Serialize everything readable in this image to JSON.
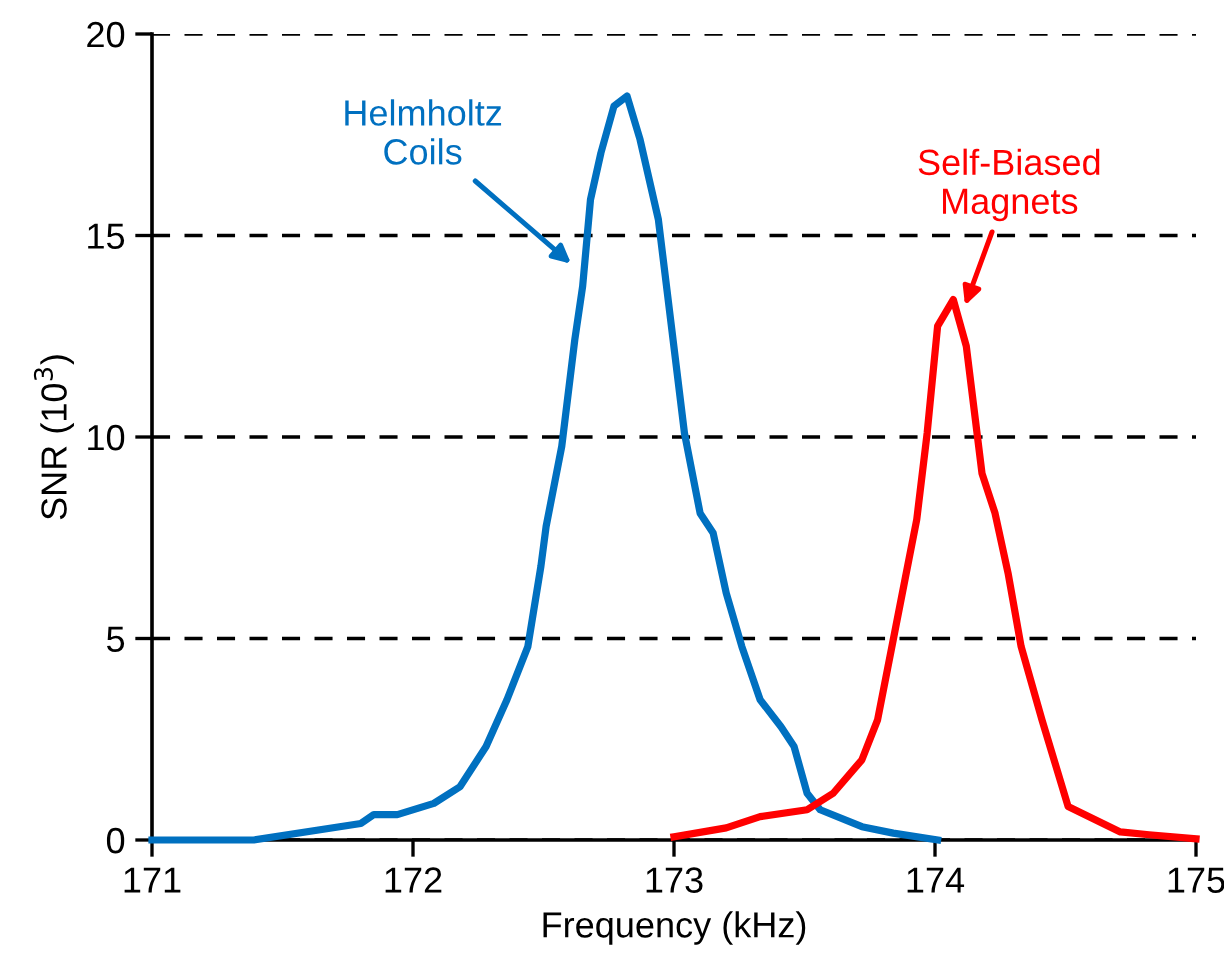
{
  "chart_data": {
    "type": "line",
    "xlabel": "Frequency (kHz)",
    "ylabel": "SNR (10$^{3}$)",
    "xlim": [
      171,
      175
    ],
    "ylim": [
      0,
      20
    ],
    "xticks": [
      171,
      172,
      173,
      174,
      175
    ],
    "yticks": [
      0,
      5,
      10,
      15,
      20
    ],
    "grid": "y",
    "line_style": "solid",
    "marker": "none",
    "legend": false,
    "series": [
      {
        "name": "Helmholtz\nCoils",
        "color": "#0070c0",
        "x": [
          171,
          171.39,
          171.8,
          171.85,
          171.94,
          172.08,
          172.18,
          172.28,
          172.36,
          172.44,
          172.49,
          172.51,
          172.57,
          172.62,
          172.65,
          172.68,
          172.72,
          172.77,
          172.82,
          172.87,
          172.94,
          172.99,
          173.04,
          173.1,
          173.15,
          173.2,
          173.26,
          173.33,
          173.41,
          173.46,
          173.51,
          173.56,
          173.72,
          173.84,
          174.01
        ],
        "values": [
          0,
          0,
          0.41,
          0.63,
          0.63,
          0.91,
          1.32,
          2.32,
          3.48,
          4.8,
          6.79,
          7.78,
          9.77,
          12.42,
          13.74,
          15.89,
          17.05,
          18.21,
          18.46,
          17.38,
          15.4,
          12.75,
          10.1,
          8.11,
          7.62,
          6.13,
          4.8,
          3.48,
          2.81,
          2.32,
          1.16,
          0.75,
          0.33,
          0.17,
          0
        ]
      },
      {
        "name": "Self-Biased\nMagnets",
        "color": "#ff0000",
        "x": [
          173.0,
          173.2,
          173.33,
          173.51,
          173.61,
          173.72,
          173.78,
          173.84,
          173.9,
          173.93,
          173.97,
          174.01,
          174.07,
          174.12,
          174.18,
          174.23,
          174.28,
          174.33,
          174.41,
          174.51,
          174.71,
          174.82,
          175.0
        ],
        "values": [
          0.08,
          0.3,
          0.58,
          0.75,
          1.16,
          1.99,
          2.98,
          4.97,
          6.96,
          7.95,
          10.1,
          12.75,
          13.41,
          12.25,
          9.1,
          8.11,
          6.62,
          4.8,
          2.98,
          0.83,
          0.2,
          0.13,
          0.03
        ]
      }
    ]
  }
}
